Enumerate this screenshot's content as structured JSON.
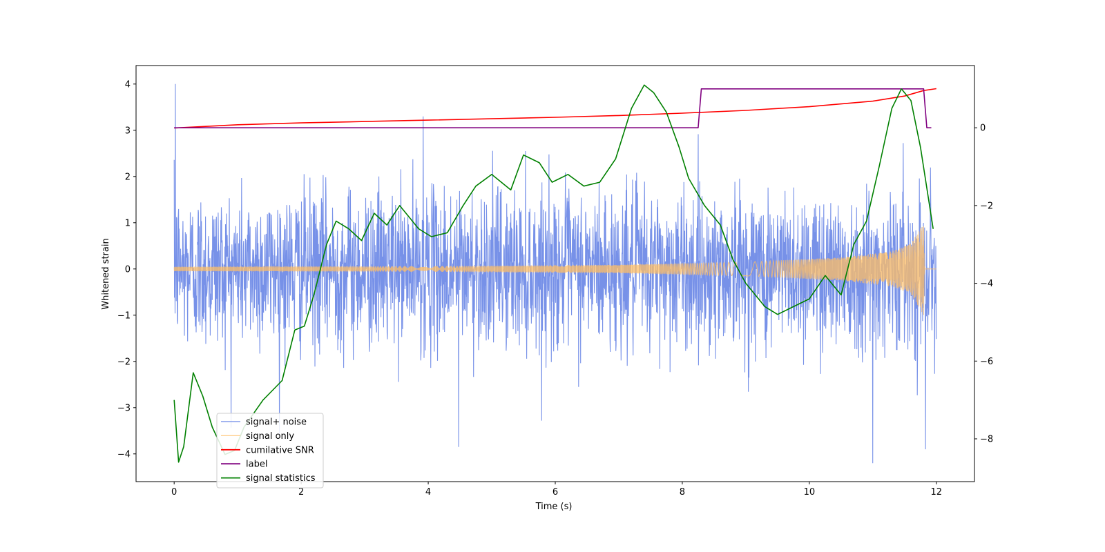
{
  "chart_data": {
    "type": "line",
    "xlabel": "Time (s)",
    "ylabel": "Whitened strain",
    "xlim": [
      -0.6,
      12.6
    ],
    "ylim": [
      -4.6,
      4.4
    ],
    "y2lim": [
      -9.1,
      1.6
    ],
    "x_ticks": [
      0,
      2,
      4,
      6,
      8,
      10,
      12
    ],
    "y_ticks": [
      -4,
      -3,
      -2,
      -1,
      0,
      1,
      2,
      3,
      4
    ],
    "y2_ticks": [
      -8,
      -6,
      -4,
      -2,
      0
    ],
    "legend_position": "lower-left",
    "series": [
      {
        "name": "signal+ noise",
        "color": "#6b88e6",
        "axis": "left",
        "description": "white noise, std ≈ 0.85, spikes to ±4",
        "noise_std": 0.85,
        "spikes": [
          {
            "x": 0.02,
            "y": 4.0
          },
          {
            "x": 3.92,
            "y": 3.3
          },
          {
            "x": 11.0,
            "y": -4.2
          },
          {
            "x": 4.48,
            "y": -3.85
          },
          {
            "x": 11.83,
            "y": -3.9
          }
        ]
      },
      {
        "name": "signal only",
        "color": "#ffbf66",
        "axis": "left",
        "description": "chirp envelope growing from 0.05 to 1.0 at t≈11.8",
        "envelope": [
          [
            0,
            0.05
          ],
          [
            4,
            0.06
          ],
          [
            7,
            0.09
          ],
          [
            9,
            0.15
          ],
          [
            10.5,
            0.25
          ],
          [
            11.3,
            0.38
          ],
          [
            11.6,
            0.55
          ],
          [
            11.8,
            1.0
          ],
          [
            11.82,
            0.0
          ],
          [
            12.0,
            0.0
          ]
        ]
      },
      {
        "name": "cumilative SNR",
        "color": "#ff0000",
        "axis": "left",
        "x": [
          0,
          1,
          2,
          3,
          4,
          5,
          6,
          7,
          8,
          9,
          10,
          10.5,
          11,
          11.5,
          11.8,
          12.0
        ],
        "y": [
          3.05,
          3.12,
          3.16,
          3.19,
          3.22,
          3.25,
          3.28,
          3.32,
          3.37,
          3.43,
          3.51,
          3.57,
          3.63,
          3.74,
          3.86,
          3.9
        ]
      },
      {
        "name": "label",
        "color": "#800080",
        "axis": "right",
        "x": [
          0,
          8.25,
          8.3,
          11.8,
          11.85,
          11.92
        ],
        "y": [
          0,
          0,
          1,
          1,
          0,
          0
        ]
      },
      {
        "name": "signal statistics",
        "color": "#008000",
        "axis": "right",
        "x": [
          0,
          0.07,
          0.15,
          0.3,
          0.45,
          0.6,
          0.8,
          0.95,
          1.1,
          1.4,
          1.7,
          1.9,
          2.05,
          2.2,
          2.4,
          2.55,
          2.75,
          2.95,
          3.15,
          3.35,
          3.55,
          3.7,
          3.85,
          4.05,
          4.3,
          4.55,
          4.75,
          5.0,
          5.3,
          5.5,
          5.75,
          5.95,
          6.2,
          6.45,
          6.7,
          6.95,
          7.2,
          7.4,
          7.55,
          7.75,
          7.95,
          8.1,
          8.35,
          8.6,
          8.8,
          9.0,
          9.3,
          9.5,
          9.75,
          10.0,
          10.25,
          10.5,
          10.7,
          10.9,
          11.1,
          11.3,
          11.45,
          11.6,
          11.75,
          11.95
        ],
        "y": [
          -7.0,
          -8.6,
          -8.2,
          -6.3,
          -6.9,
          -7.7,
          -8.4,
          -8.3,
          -7.7,
          -7.0,
          -6.5,
          -5.2,
          -5.1,
          -4.3,
          -3.0,
          -2.4,
          -2.6,
          -2.9,
          -2.2,
          -2.5,
          -2.0,
          -2.3,
          -2.6,
          -2.8,
          -2.7,
          -2.0,
          -1.5,
          -1.2,
          -1.6,
          -0.7,
          -0.9,
          -1.4,
          -1.2,
          -1.5,
          -1.4,
          -0.8,
          0.5,
          1.1,
          0.9,
          0.4,
          -0.5,
          -1.3,
          -2.0,
          -2.5,
          -3.4,
          -4.0,
          -4.6,
          -4.8,
          -4.6,
          -4.4,
          -3.8,
          -4.3,
          -3.0,
          -2.4,
          -1.0,
          0.5,
          1.0,
          0.7,
          -0.5,
          -2.6
        ]
      }
    ]
  }
}
